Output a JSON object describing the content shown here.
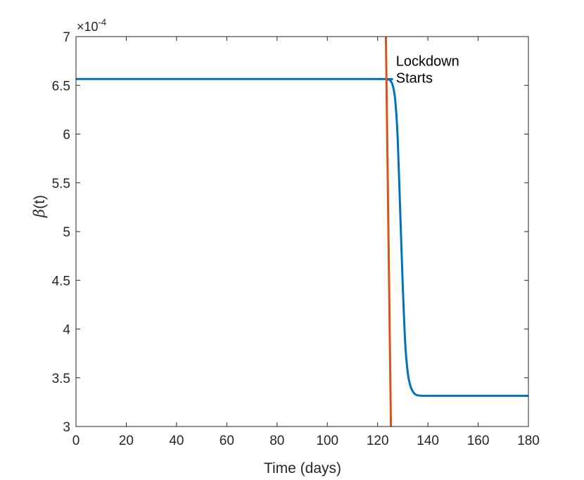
{
  "chart_data": {
    "type": "line",
    "xlabel": "Time (days)",
    "ylabel_symbol": "β",
    "ylabel_rest": "(t)",
    "y_multiplier_prefix": "×10",
    "y_multiplier_exponent": "-4",
    "xlim": [
      0,
      180
    ],
    "ylim": [
      3,
      7
    ],
    "x_ticks": [
      0,
      20,
      40,
      60,
      80,
      100,
      120,
      140,
      160,
      180
    ],
    "y_ticks": [
      3,
      3.5,
      4,
      4.5,
      5,
      5.5,
      6,
      6.5,
      7
    ],
    "y_tick_labels": [
      "3",
      "3.5",
      "4",
      "4.5",
      "5",
      "5.5",
      "6",
      "6.5",
      "7"
    ],
    "grid": false,
    "series": [
      {
        "color": "#0072BD",
        "x": [
          0,
          60,
          120,
          124,
          125,
          126,
          127,
          128,
          129,
          130,
          131,
          132,
          133,
          134,
          135,
          136,
          138,
          140,
          150,
          160,
          170,
          180
        ],
        "y": [
          6.565,
          6.565,
          6.565,
          6.56,
          6.55,
          6.5,
          6.35,
          5.95,
          5.2,
          4.45,
          3.85,
          3.55,
          3.42,
          3.36,
          3.33,
          3.32,
          3.315,
          3.315,
          3.315,
          3.315,
          3.315,
          3.315
        ]
      },
      {
        "color": "#D95319",
        "x": [
          123.3,
          125.3
        ],
        "y": [
          7,
          3
        ]
      }
    ],
    "annotations": [
      {
        "lines": [
          "Lockdown",
          "Starts"
        ],
        "x": 127.3,
        "y": 6.7
      }
    ]
  }
}
